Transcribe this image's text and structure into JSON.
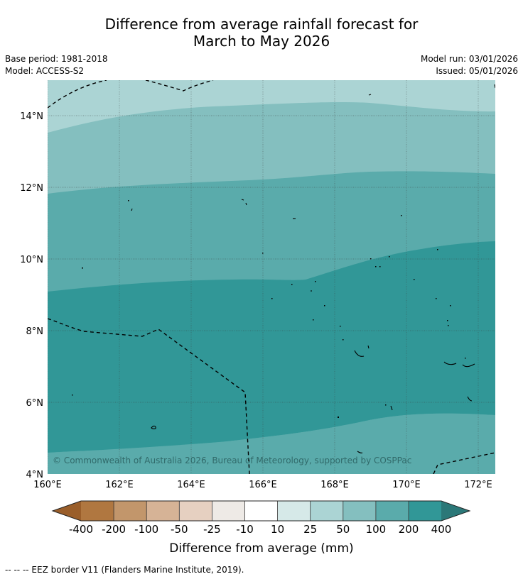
{
  "header": {
    "title_line1": "Difference from average rainfall forecast for",
    "title_line2": "March to May 2026",
    "base_period": "Base period: 1981-2018",
    "model": "Model: ACCESS-S2",
    "model_run": "Model run: 03/01/2026",
    "issued": "Issued: 05/01/2026"
  },
  "map": {
    "lon_range": [
      160,
      172.5
    ],
    "lat_range": [
      4,
      15
    ],
    "x_ticks": [
      "160°E",
      "162°E",
      "164°E",
      "166°E",
      "168°E",
      "170°E",
      "172°E"
    ],
    "y_ticks": [
      "14°N",
      "12°N",
      "10°N",
      "8°N",
      "6°N",
      "4°N"
    ],
    "copyright": "© Commonwealth of Australia 2026, Bureau of Meteorology, supported by COSPPac",
    "colors": {
      "c25_50": "#abd4d4",
      "c50_100": "#84bfbf",
      "c100_200": "#5aabab",
      "c200_400": "#319797"
    }
  },
  "colorbar": {
    "labels": [
      "-400",
      "-200",
      "-100",
      "-50",
      "-25",
      "-10",
      "10",
      "25",
      "50",
      "100",
      "200",
      "400"
    ],
    "colors": [
      "#9a5e2a",
      "#b07740",
      "#c2966b",
      "#d6b396",
      "#e6d0c1",
      "#eeeae6",
      "#ffffff",
      "#d6e9e8",
      "#abd4d4",
      "#84bfbf",
      "#5aabab",
      "#319797",
      "#2b7878"
    ],
    "label": "Difference from average (mm)"
  },
  "footnote": "--  --  -- EEZ border V11 (Flanders Marine Institute, 2019)."
}
